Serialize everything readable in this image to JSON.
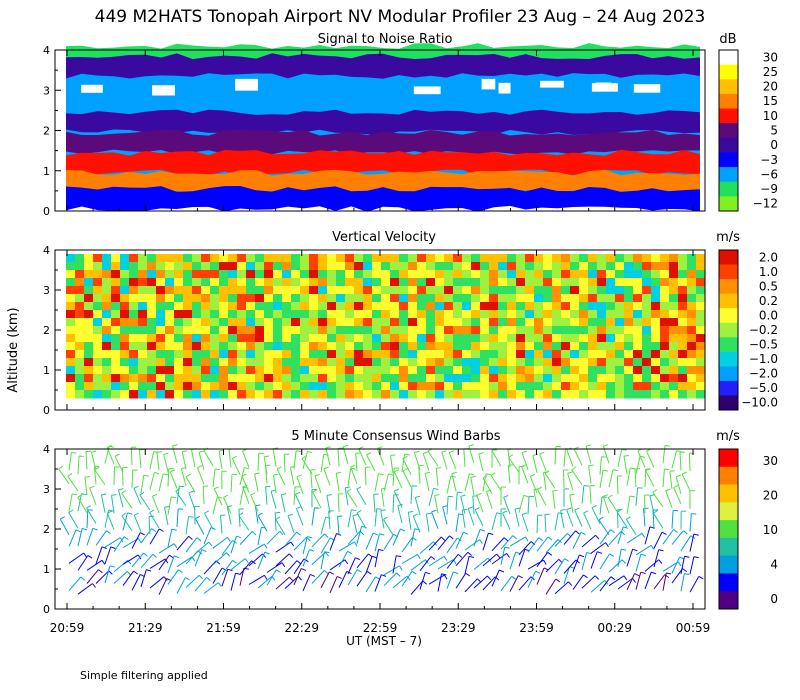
{
  "title": "449 M2HATS Tonopah Airport NV Modular Profiler 23 Aug – 24 Aug 2023",
  "ylabel": "Altitude (km)",
  "xlabel": "UT  (MST – 7)",
  "footer_note": "Simple filtering applied",
  "x_ticks": [
    "20:59",
    "21:29",
    "21:59",
    "22:29",
    "22:59",
    "23:29",
    "23:59",
    "00:29",
    "00:59"
  ],
  "y_ticks": [
    "0",
    "1",
    "2",
    "3",
    "4"
  ],
  "chart_data": [
    {
      "type": "heatmap",
      "title": "Signal to Noise Ratio",
      "x_range": [
        "20:59",
        "00:59"
      ],
      "ylim": [
        0,
        4
      ],
      "colorbar": {
        "unit": "dB",
        "labels": [
          "30",
          "25",
          "20",
          "15",
          "10",
          "5",
          "0",
          "−3",
          "−6",
          "−9",
          "−12"
        ],
        "colors": [
          "#ffffff",
          "#ffff00",
          "#ffc000",
          "#ff8000",
          "#ff1000",
          "#5a0a7a",
          "#3a0aa0",
          "#0000ff",
          "#00a0ff",
          "#20e060",
          "#80f020"
        ]
      },
      "layers": [
        {
          "alt": 0.3,
          "value": "−3"
        },
        {
          "alt": 0.7,
          "value": "15"
        },
        {
          "alt": 1.2,
          "value": "10"
        },
        {
          "alt": 1.7,
          "value": "5"
        },
        {
          "alt": 2.2,
          "value": "0"
        },
        {
          "alt": 2.9,
          "value": "−6"
        },
        {
          "alt": 3.6,
          "value": "0"
        },
        {
          "alt": 3.85,
          "value": "−9"
        }
      ]
    },
    {
      "type": "heatmap",
      "title": "Vertical Velocity",
      "x_range": [
        "20:59",
        "00:59"
      ],
      "ylim": [
        0,
        4
      ],
      "colorbar": {
        "unit": "m/s",
        "labels": [
          "2.0",
          "1.0",
          "0.5",
          "0.2",
          "0.0",
          "−0.2",
          "−0.5",
          "−1.0",
          "−2.0",
          "−5.0",
          "−10.0"
        ],
        "colors": [
          "#e01000",
          "#ff4000",
          "#ff9000",
          "#ffc000",
          "#ffff30",
          "#a0f040",
          "#30e060",
          "#00d0e0",
          "#00a0ff",
          "#2020ff",
          "#300070"
        ]
      }
    },
    {
      "type": "scatter",
      "title": "5 Minute Consensus Wind Barbs",
      "x_range": [
        "20:59",
        "00:59"
      ],
      "ylim": [
        0,
        4
      ],
      "colorbar": {
        "unit": "m/s",
        "labels": [
          "30",
          "20",
          "10",
          "4",
          "0"
        ],
        "colors": [
          "#ff0000",
          "#ff8000",
          "#ffc000",
          "#e0f040",
          "#50e040",
          "#20c0a0",
          "#00a0e0",
          "#0000ff",
          "#500080"
        ]
      },
      "profile": [
        {
          "alt": 0.5,
          "speed": 3
        },
        {
          "alt": 1.0,
          "speed": 4
        },
        {
          "alt": 1.5,
          "speed": 5
        },
        {
          "alt": 2.0,
          "speed": 8
        },
        {
          "alt": 2.5,
          "speed": 10
        },
        {
          "alt": 3.0,
          "speed": 12
        },
        {
          "alt": 3.5,
          "speed": 12
        }
      ]
    }
  ]
}
